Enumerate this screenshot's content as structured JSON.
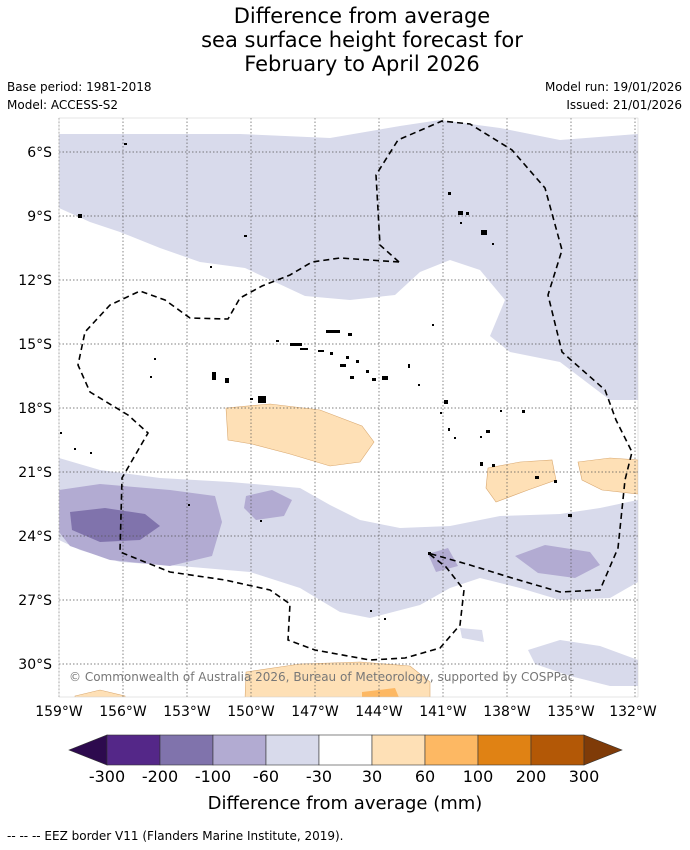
{
  "title": {
    "line1": "Difference from average",
    "line2": "sea surface height forecast for",
    "line3": "February to April 2026"
  },
  "meta": {
    "base_period": "Base period: 1981-2018",
    "model": "Model: ACCESS-S2",
    "model_run": "Model run: 19/01/2026",
    "issued": "Issued: 21/01/2026"
  },
  "axes": {
    "lat_labels": [
      "6°S",
      "9°S",
      "12°S",
      "15°S",
      "18°S",
      "21°S",
      "24°S",
      "27°S",
      "30°S"
    ],
    "lon_labels": [
      "159°W",
      "156°W",
      "153°W",
      "150°W",
      "147°W",
      "144°W",
      "141°W",
      "138°W",
      "135°W",
      "132°W"
    ]
  },
  "copyright": "© Commonwealth of Australia 2026, Bureau of Meteorology, supported by COSPPac",
  "colorbar": {
    "ticks": [
      "-300",
      "-200",
      "-100",
      "-60",
      "-30",
      "30",
      "60",
      "100",
      "200",
      "300"
    ],
    "colors": {
      "under": "#2d0a4e",
      "c1": "#542788",
      "c2": "#8073ac",
      "c3": "#b2abd2",
      "c4": "#d8daeb",
      "c5": "#ffffff",
      "c6": "#fee0b6",
      "c7": "#fdb863",
      "c8": "#e08214",
      "c9": "#b35806",
      "over": "#7f3b08"
    },
    "label": "Difference from average (mm)"
  },
  "legend": {
    "eez": "--  --  -- EEZ border V11 (Flanders Marine Institute, 2019)."
  }
}
